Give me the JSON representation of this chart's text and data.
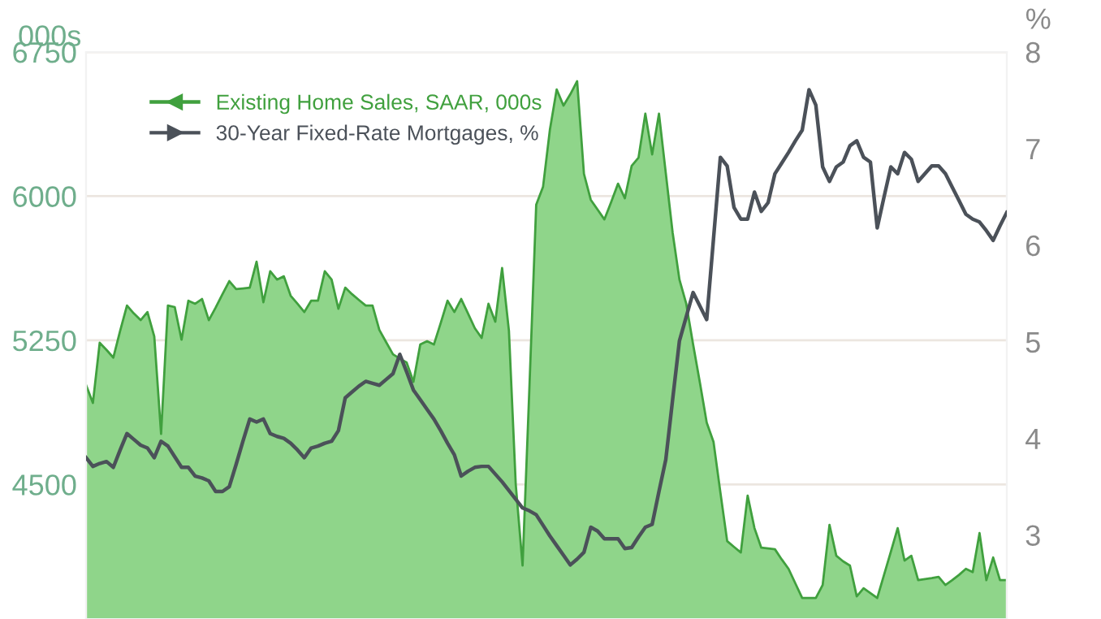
{
  "chart_data": {
    "type": "area",
    "ylabel": "000s",
    "y2label": "%",
    "categories": [
      null,
      null,
      null,
      null,
      null,
      null,
      null,
      null,
      null,
      null,
      null,
      null,
      null,
      null,
      null,
      null,
      null,
      null,
      null,
      null,
      null,
      null,
      null,
      null,
      null,
      null,
      null,
      null,
      null,
      null,
      null,
      null,
      null,
      null,
      null,
      null,
      null,
      null,
      null,
      null,
      null,
      null,
      null,
      null,
      null,
      null,
      null,
      null,
      null,
      null,
      null,
      null,
      null,
      null,
      null,
      null,
      null,
      null,
      null,
      null,
      null,
      null,
      null,
      null,
      null,
      null,
      null,
      null,
      null,
      null,
      null,
      null,
      null,
      null,
      null,
      null,
      null,
      null,
      null,
      null,
      null,
      null,
      null,
      null,
      null,
      null,
      null,
      null,
      null,
      null,
      null,
      null,
      null,
      null,
      null,
      null,
      null,
      null,
      null,
      null,
      null,
      null,
      null,
      null,
      null,
      null,
      null,
      null,
      null,
      null,
      null,
      null,
      null,
      null,
      null,
      null,
      null,
      null,
      null,
      null,
      null,
      null,
      null,
      null,
      null,
      null,
      null,
      null,
      null,
      null,
      null,
      null,
      null,
      null,
      null,
      null
    ],
    "ylim": [
      3800,
      6750
    ],
    "yticks": [
      4500,
      5250,
      6000,
      6750
    ],
    "y2lim": [
      2.13,
      8
    ],
    "y2ticks": [
      3,
      4,
      5,
      6,
      7,
      8
    ],
    "grid": "y",
    "legend": "top left",
    "tick_labels": "y",
    "series": [
      {
        "name": "Existing Home Sales, SAAR, 000s",
        "color": "#8fd58a",
        "axis": "y",
        "values": [
          5017,
          4924,
          5237,
          5200,
          5160,
          5300,
          5431,
          5390,
          5355,
          5397,
          5270,
          4763,
          5431,
          5423,
          5253,
          5456,
          5440,
          5465,
          5355,
          5420,
          5490,
          5558,
          5516,
          5520,
          5524,
          5659,
          5448,
          5609,
          5566,
          5583,
          5482,
          5440,
          5397,
          5456,
          5456,
          5609,
          5566,
          5414,
          5524,
          5490,
          5460,
          5431,
          5431,
          5304,
          5240,
          5177,
          5155,
          5135,
          5034,
          5228,
          5245,
          5228,
          5340,
          5456,
          5397,
          5465,
          5390,
          5313,
          5262,
          5440,
          5347,
          5626,
          5300,
          4500,
          4078,
          5000,
          5955,
          6048,
          6344,
          6555,
          6471,
          6530,
          6598,
          6116,
          5981,
          5930,
          5879,
          5970,
          6065,
          5989,
          6158,
          6200,
          6429,
          6217,
          6429,
          6120,
          5811,
          5566,
          5440,
          5230,
          5030,
          4822,
          4721,
          4460,
          4205,
          4175,
          4146,
          4442,
          4273,
          4171,
          4167,
          4163,
          4110,
          4061,
          3985,
          3909,
          3909,
          3909,
          3977,
          4290,
          4129,
          4100,
          4078,
          3918,
          3960,
          3935,
          3909,
          4030,
          4150,
          4273,
          4104,
          4129,
          4002,
          4008,
          4013,
          4019,
          3977,
          4002,
          4030,
          4061,
          4044,
          4247,
          4002,
          4120,
          4002,
          4002
        ]
      },
      {
        "name": "30-Year Fixed-Rate Mortgages, %",
        "type": "line",
        "color": "#4b5159",
        "axis": "y2",
        "values": [
          3.8,
          3.71,
          3.74,
          3.76,
          3.7,
          3.88,
          4.05,
          3.99,
          3.93,
          3.9,
          3.8,
          3.97,
          3.92,
          3.81,
          3.7,
          3.7,
          3.61,
          3.59,
          3.56,
          3.45,
          3.45,
          3.5,
          3.73,
          3.97,
          4.2,
          4.17,
          4.2,
          4.05,
          4.02,
          4.0,
          3.95,
          3.88,
          3.8,
          3.9,
          3.92,
          3.95,
          3.97,
          4.08,
          4.42,
          4.48,
          4.54,
          4.59,
          4.57,
          4.55,
          4.61,
          4.67,
          4.87,
          4.69,
          4.5,
          4.4,
          4.3,
          4.2,
          4.08,
          3.95,
          3.83,
          3.61,
          3.66,
          3.7,
          3.71,
          3.71,
          3.63,
          3.55,
          3.46,
          3.37,
          3.28,
          3.25,
          3.21,
          3.1,
          2.99,
          2.89,
          2.79,
          2.69,
          2.75,
          2.82,
          3.08,
          3.04,
          2.96,
          2.96,
          2.96,
          2.86,
          2.87,
          2.98,
          3.08,
          3.11,
          3.45,
          3.78,
          4.4,
          5.01,
          5.26,
          5.51,
          5.37,
          5.23,
          6.07,
          6.91,
          6.82,
          6.39,
          6.27,
          6.27,
          6.55,
          6.35,
          6.44,
          6.74,
          6.85,
          6.96,
          7.08,
          7.19,
          7.61,
          7.45,
          6.81,
          6.66,
          6.81,
          6.86,
          7.03,
          7.08,
          6.91,
          6.86,
          6.18,
          6.5,
          6.81,
          6.74,
          6.96,
          6.89,
          6.66,
          6.74,
          6.82,
          6.82,
          6.74,
          6.6,
          6.46,
          6.32,
          6.27,
          6.24,
          6.15,
          6.05,
          6.2,
          6.34
        ]
      }
    ]
  }
}
